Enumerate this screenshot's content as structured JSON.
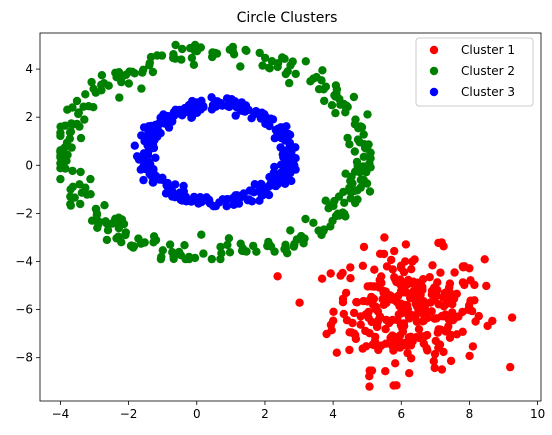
{
  "chart_data": {
    "type": "scatter",
    "title": "Circle Clusters",
    "xlabel": "",
    "ylabel": "",
    "xlim": [
      -4.6,
      10.1
    ],
    "ylim": [
      -9.8,
      5.5
    ],
    "xticks": [
      -4,
      -2,
      0,
      2,
      4,
      6,
      8,
      10
    ],
    "yticks": [
      -8,
      -6,
      -4,
      -2,
      0,
      2,
      4
    ],
    "grid": false,
    "legend_position": "top-right",
    "series": [
      {
        "name": "Cluster 1",
        "color": "#ff0000",
        "shape": "gaussian-blob",
        "center": [
          6.2,
          -6.0
        ],
        "spread": [
          1.1,
          1.2
        ],
        "count": 300,
        "x_range": [
          2.2,
          9.4
        ],
        "y_range": [
          -9.2,
          -2.6
        ]
      },
      {
        "name": "Cluster 2",
        "color": "#008000",
        "shape": "ring",
        "center": [
          0.5,
          0.5
        ],
        "radii": [
          4.4,
          4.2
        ],
        "noise": 0.25,
        "count": 300,
        "x_range": [
          -4.0,
          5.1
        ],
        "y_range": [
          -3.9,
          5.0
        ]
      },
      {
        "name": "Cluster 3",
        "color": "#0000ff",
        "shape": "ring",
        "center": [
          0.6,
          0.5
        ],
        "radii": [
          2.1,
          2.0
        ],
        "noise": 0.15,
        "count": 300,
        "x_range": [
          -1.9,
          2.9
        ],
        "y_range": [
          -1.7,
          2.9
        ]
      }
    ]
  }
}
